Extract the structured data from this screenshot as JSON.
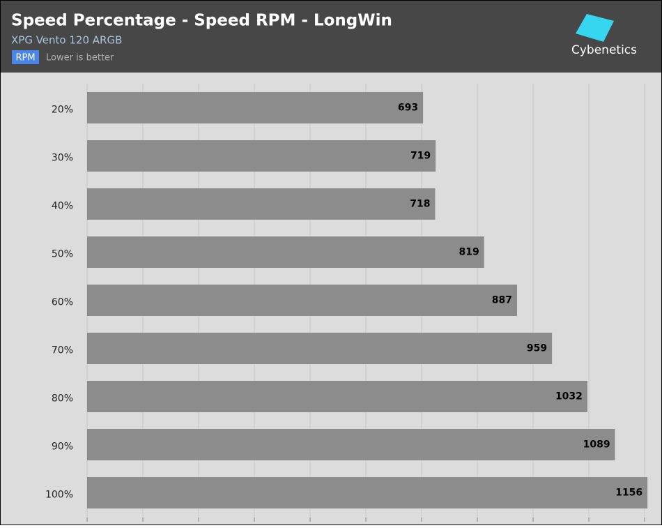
{
  "chart_data": {
    "type": "bar",
    "orientation": "horizontal",
    "title": "Speed Percentage - Speed RPM - LongWin",
    "subtitle": "XPG Vento 120 ARGB",
    "badge": "RPM",
    "note": "Lower is better",
    "categories": [
      "20%",
      "30%",
      "40%",
      "50%",
      "60%",
      "70%",
      "80%",
      "90%",
      "100%"
    ],
    "values": [
      693,
      719,
      718,
      819,
      887,
      959,
      1032,
      1089,
      1156
    ],
    "color": "#8c8c8c",
    "xlim": [
      0,
      1150
    ],
    "grid": true
  },
  "logo": "Cybenetics"
}
